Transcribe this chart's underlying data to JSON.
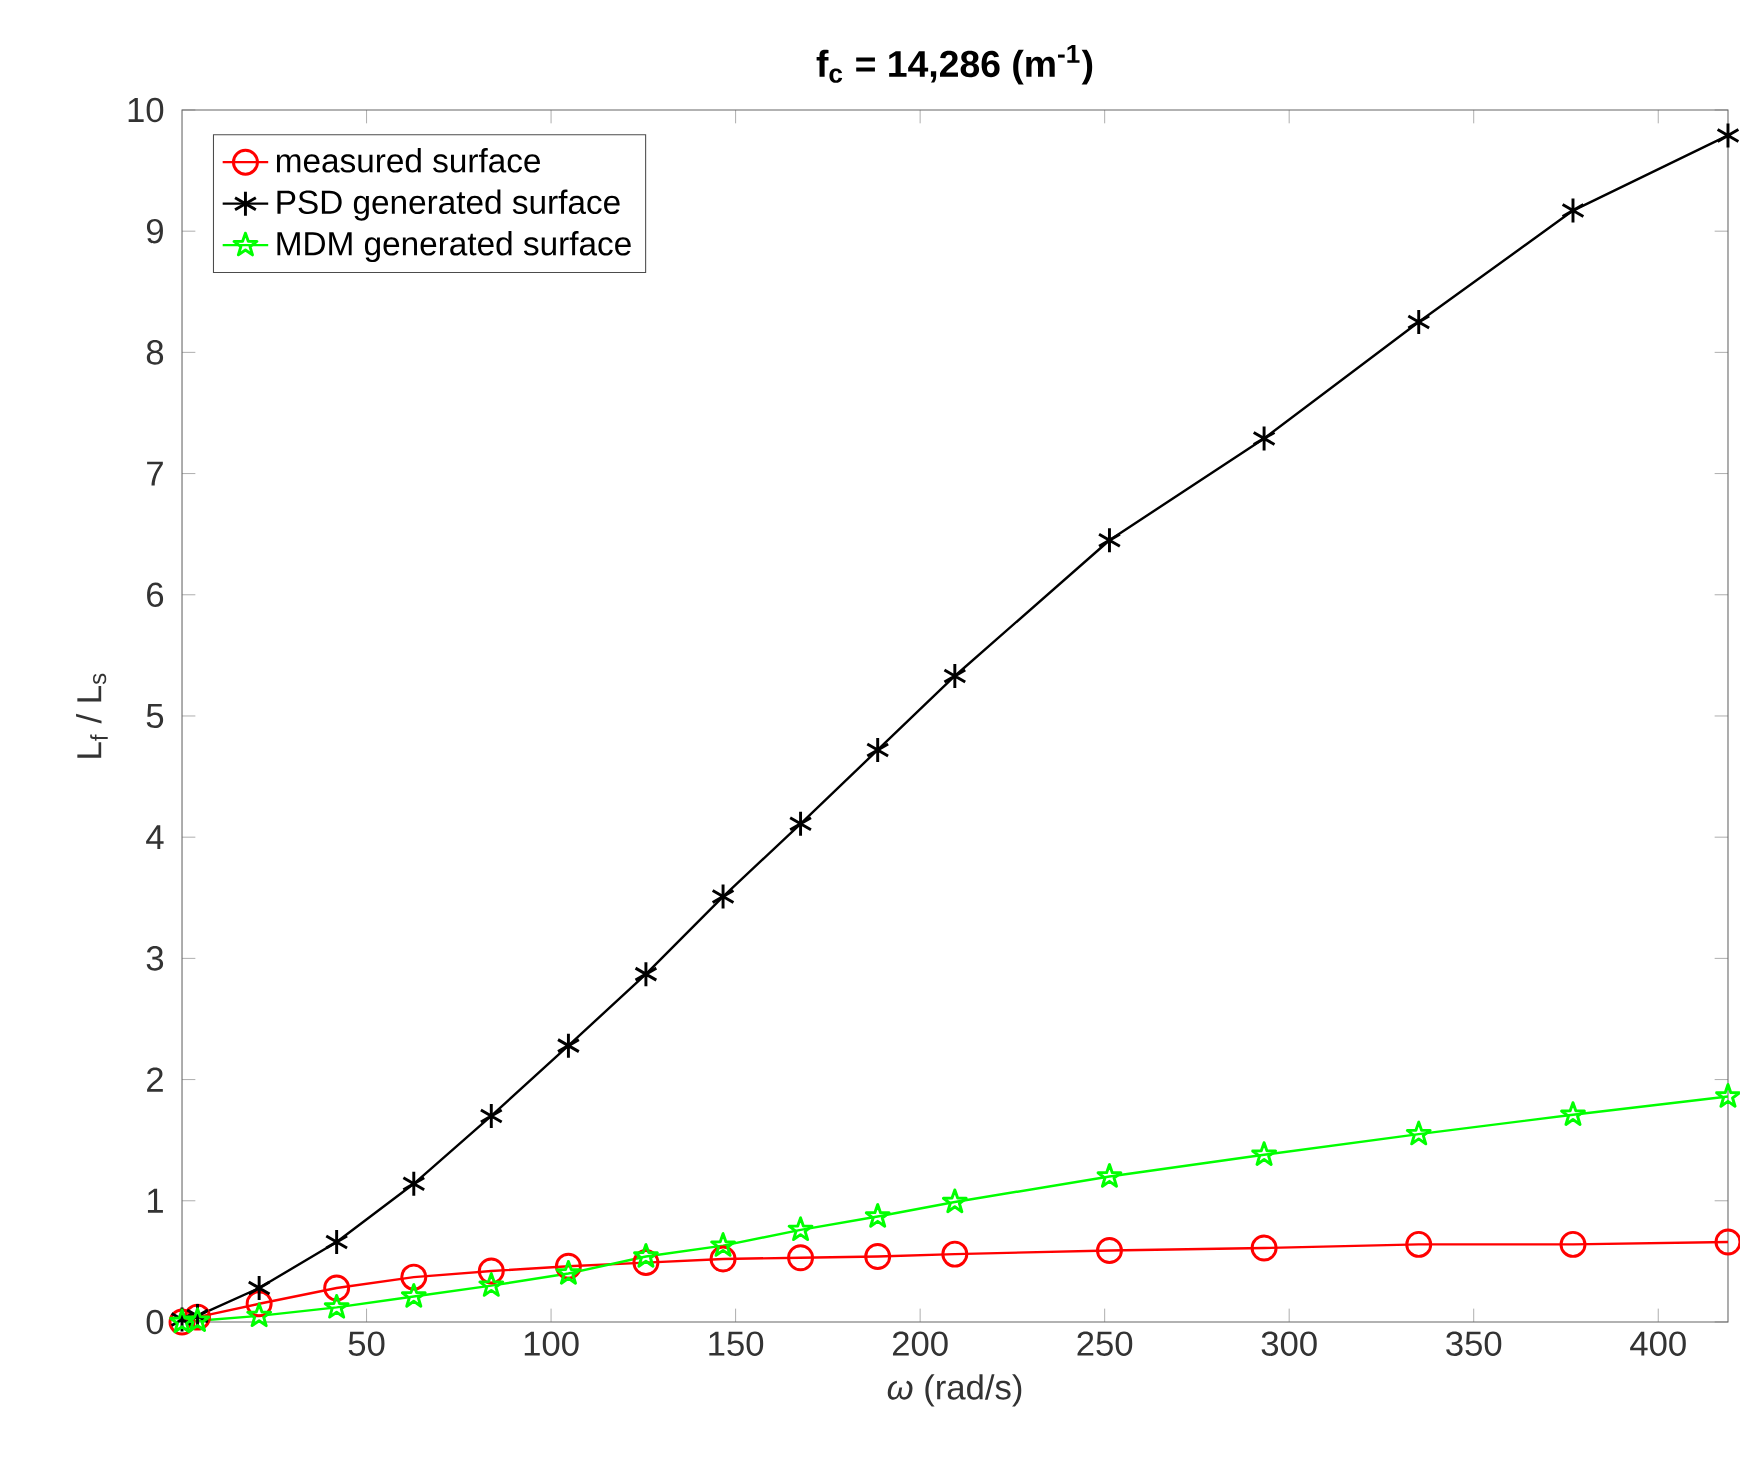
{
  "chart_data": {
    "type": "line",
    "title": "**f$_{c}$ = 14,286 (m$^{-1}$)**",
    "xlabel": "*ω* (rad/s)",
    "ylabel": "L$_{f}$ / L$_{s}$",
    "xlim": [
      0,
      418.9
    ],
    "ylim": [
      0,
      10
    ],
    "xticks": [
      50,
      100,
      150,
      200,
      250,
      300,
      350,
      400
    ],
    "yticks": [
      0,
      1,
      2,
      3,
      4,
      5,
      6,
      7,
      8,
      9,
      10
    ],
    "grid": false,
    "legend": "top left",
    "line_style": "solid",
    "x": [
      0,
      4.2,
      20.9,
      41.9,
      62.8,
      83.8,
      104.7,
      125.7,
      146.6,
      167.6,
      188.5,
      209.4,
      251.3,
      293.2,
      335.1,
      376.9,
      418.9
    ],
    "series": [
      {
        "name": "measured surface",
        "color": "#ff0000",
        "marker": "circle",
        "values": [
          0,
          0.04,
          0.15,
          0.28,
          0.37,
          0.42,
          0.46,
          0.49,
          0.52,
          0.53,
          0.54,
          0.56,
          0.59,
          0.61,
          0.64,
          0.64,
          0.66
        ]
      },
      {
        "name": "PSD generated surface",
        "color": "#000000",
        "marker": "cross",
        "values": [
          0.02,
          0.05,
          0.28,
          0.66,
          1.14,
          1.7,
          2.28,
          2.87,
          3.51,
          4.11,
          4.72,
          5.33,
          6.45,
          7.29,
          8.25,
          9.17,
          9.79
        ]
      },
      {
        "name": "MDM generated surface",
        "color": "#00ff00",
        "marker": "star",
        "values": [
          0,
          0.01,
          0.05,
          0.12,
          0.21,
          0.3,
          0.4,
          0.54,
          0.63,
          0.76,
          0.87,
          0.99,
          1.2,
          1.38,
          1.55,
          1.71,
          1.86
        ]
      }
    ]
  }
}
